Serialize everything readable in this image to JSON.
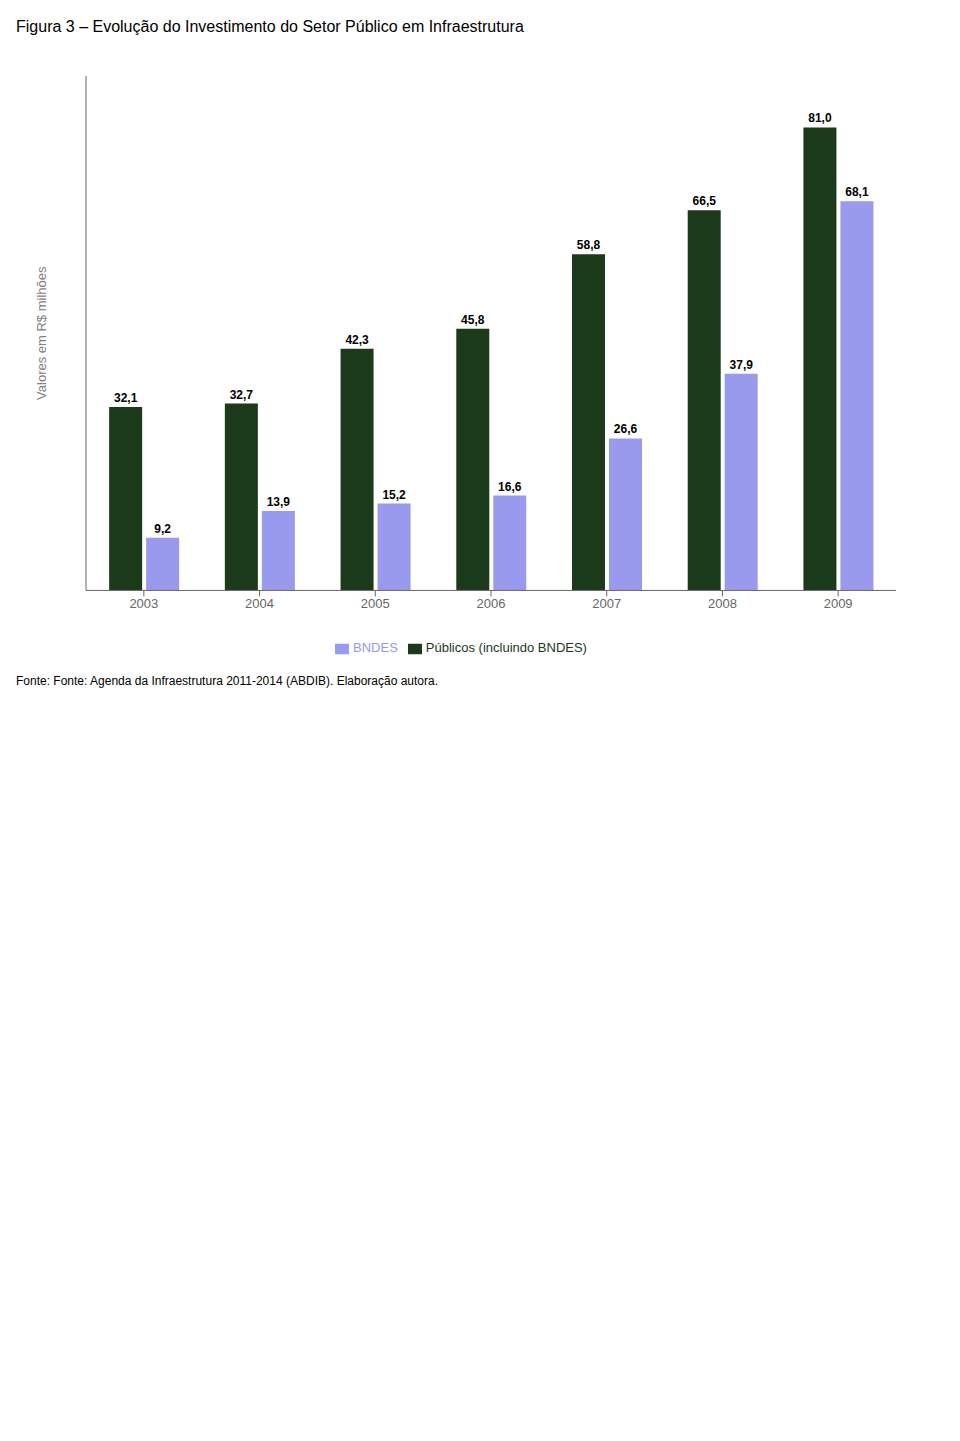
{
  "chart_data": {
    "type": "bar",
    "title": "Figura 3 – Evolução do Investimento do Setor Público em Infraestrutura",
    "y_label": "Valores em R$ milhões",
    "categories": [
      "2003",
      "2004",
      "2005",
      "2006",
      "2007",
      "2008",
      "2009"
    ],
    "series": [
      {
        "name": "Públicos (incluindo BNDES)",
        "color": "#1a3a1a",
        "values": [
          32.1,
          32.7,
          42.3,
          45.8,
          58.8,
          66.5,
          81.0
        ],
        "value_labels": [
          "32,1",
          "32,7",
          "42,3",
          "45,8",
          "58,8",
          "66,5",
          "81,0"
        ]
      },
      {
        "name": "BNDES",
        "color": "#9999ee",
        "values": [
          9.2,
          13.9,
          15.2,
          16.6,
          26.6,
          37.9,
          68.1
        ],
        "value_labels": [
          "9,2",
          "13,9",
          "15,2",
          "16,6",
          "26,6",
          "37,9",
          "68,1"
        ]
      }
    ],
    "ylim": [
      0,
      90
    ],
    "tick_labels": "x",
    "grid": false,
    "legend": "bottom",
    "data_labels": true,
    "annotations": [
      "Fonte: Fonte: Agenda da Infraestrutura 2011-2014 (ABDIB). Elaboração autora."
    ]
  }
}
